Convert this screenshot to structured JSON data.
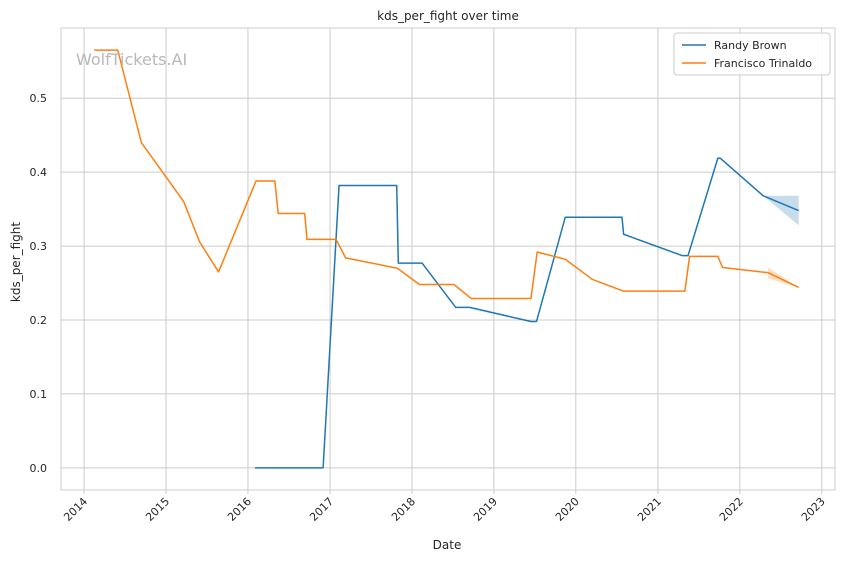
{
  "chart_data": {
    "type": "line",
    "title": "kds_per_fight over time",
    "xlabel": "Date",
    "ylabel": "kds_per_fight",
    "watermark": "WolfTickets.AI",
    "xlim": [
      "2013-09-20",
      "2023-03-01"
    ],
    "ylim": [
      -0.03,
      0.595
    ],
    "x_ticks": [
      "2014-01-01",
      "2015-01-01",
      "2016-01-01",
      "2017-01-01",
      "2018-01-01",
      "2019-01-01",
      "2020-01-01",
      "2021-01-01",
      "2022-01-01",
      "2023-01-01"
    ],
    "x_tick_labels": [
      "2014",
      "2015",
      "2016",
      "2017",
      "2018",
      "2019",
      "2020",
      "2021",
      "2022",
      "2023"
    ],
    "y_ticks": [
      0.0,
      0.1,
      0.2,
      0.3,
      0.4,
      0.5
    ],
    "y_tick_labels": [
      "0.0",
      "0.1",
      "0.2",
      "0.3",
      "0.4",
      "0.5"
    ],
    "grid": true,
    "legend_position": "top-right",
    "series": [
      {
        "name": "Randy Brown",
        "color": "#1f77b4",
        "points": [
          [
            "2016-02-01",
            0.0
          ],
          [
            "2016-12-01",
            0.0
          ],
          [
            "2017-02-10",
            0.382
          ],
          [
            "2017-10-25",
            0.382
          ],
          [
            "2017-11-01",
            0.277
          ],
          [
            "2018-02-15",
            0.277
          ],
          [
            "2018-07-15",
            0.217
          ],
          [
            "2018-09-15",
            0.217
          ],
          [
            "2019-06-15",
            0.198
          ],
          [
            "2019-07-10",
            0.198
          ],
          [
            "2019-11-15",
            0.339
          ],
          [
            "2020-07-25",
            0.339
          ],
          [
            "2020-08-01",
            0.316
          ],
          [
            "2021-04-20",
            0.287
          ],
          [
            "2021-05-15",
            0.287
          ],
          [
            "2021-09-25",
            0.419
          ],
          [
            "2021-10-05",
            0.419
          ],
          [
            "2022-04-15",
            0.368
          ],
          [
            "2022-09-20",
            0.348
          ]
        ],
        "band": [
          [
            "2022-04-15",
            0.368,
            0.368
          ],
          [
            "2022-09-20",
            0.328,
            0.368
          ]
        ]
      },
      {
        "name": "Francisco Trinaldo",
        "color": "#ff7f0e",
        "points": [
          [
            "2014-02-15",
            0.565
          ],
          [
            "2014-05-31",
            0.565
          ],
          [
            "2014-09-13",
            0.44
          ],
          [
            "2015-03-21",
            0.36
          ],
          [
            "2015-05-30",
            0.306
          ],
          [
            "2015-08-23",
            0.265
          ],
          [
            "2016-02-06",
            0.388
          ],
          [
            "2016-04-30",
            0.388
          ],
          [
            "2016-05-15",
            0.344
          ],
          [
            "2016-09-10",
            0.344
          ],
          [
            "2016-09-20",
            0.309
          ],
          [
            "2017-01-28",
            0.309
          ],
          [
            "2017-03-11",
            0.284
          ],
          [
            "2017-10-28",
            0.27
          ],
          [
            "2018-02-03",
            0.248
          ],
          [
            "2018-07-07",
            0.248
          ],
          [
            "2018-09-22",
            0.229
          ],
          [
            "2019-06-15",
            0.229
          ],
          [
            "2019-07-13",
            0.292
          ],
          [
            "2019-11-16",
            0.282
          ],
          [
            "2020-03-14",
            0.255
          ],
          [
            "2020-08-01",
            0.239
          ],
          [
            "2021-05-01",
            0.239
          ],
          [
            "2021-05-22",
            0.286
          ],
          [
            "2021-09-25",
            0.286
          ],
          [
            "2021-10-16",
            0.271
          ],
          [
            "2022-05-07",
            0.264
          ],
          [
            "2022-09-20",
            0.244
          ]
        ],
        "band": [
          [
            "2022-05-07",
            0.256,
            0.271
          ],
          [
            "2022-09-20",
            0.244,
            0.244
          ]
        ]
      }
    ]
  }
}
